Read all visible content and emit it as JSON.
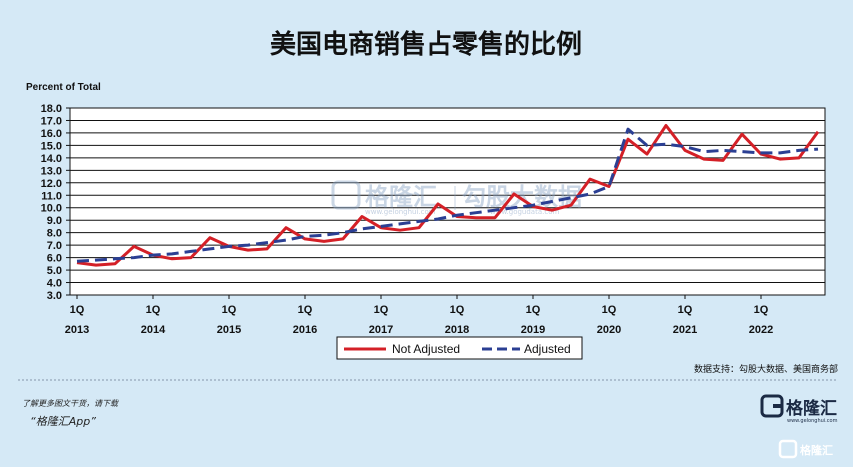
{
  "chart_data": {
    "type": "line",
    "title": "美国电商销售占零售的比例",
    "ylabel": "Percent of Total",
    "xlabel": "",
    "ylim": [
      3.0,
      18.0
    ],
    "yticks": [
      "3.0",
      "4.0",
      "5.0",
      "6.0",
      "7.0",
      "8.0",
      "9.0",
      "10.0",
      "11.0",
      "12.0",
      "13.0",
      "14.0",
      "15.0",
      "16.0",
      "17.0",
      "18.0"
    ],
    "grid": "horizontal",
    "legend_position": "bottom-center",
    "x_ticks": [
      {
        "q": "1Q",
        "year": "2013"
      },
      {
        "q": "1Q",
        "year": "2014"
      },
      {
        "q": "1Q",
        "year": "2015"
      },
      {
        "q": "1Q",
        "year": "2016"
      },
      {
        "q": "1Q",
        "year": "2017"
      },
      {
        "q": "1Q",
        "year": "2018"
      },
      {
        "q": "1Q",
        "year": "2019"
      },
      {
        "q": "1Q",
        "year": "2020"
      },
      {
        "q": "1Q",
        "year": "2021"
      },
      {
        "q": "1Q",
        "year": "2022"
      }
    ],
    "categories": [
      "2013 Q1",
      "2013 Q2",
      "2013 Q3",
      "2013 Q4",
      "2014 Q1",
      "2014 Q2",
      "2014 Q3",
      "2014 Q4",
      "2015 Q1",
      "2015 Q2",
      "2015 Q3",
      "2015 Q4",
      "2016 Q1",
      "2016 Q2",
      "2016 Q3",
      "2016 Q4",
      "2017 Q1",
      "2017 Q2",
      "2017 Q3",
      "2017 Q4",
      "2018 Q1",
      "2018 Q2",
      "2018 Q3",
      "2018 Q4",
      "2019 Q1",
      "2019 Q2",
      "2019 Q3",
      "2019 Q4",
      "2020 Q1",
      "2020 Q2",
      "2020 Q3",
      "2020 Q4",
      "2021 Q1",
      "2021 Q2",
      "2021 Q3",
      "2021 Q4",
      "2022 Q1",
      "2022 Q2",
      "2022 Q3",
      "2022 Q4"
    ],
    "series": [
      {
        "name": "Not Adjusted",
        "color": "#d42027",
        "style": "solid",
        "values": [
          5.6,
          5.4,
          5.5,
          6.9,
          6.2,
          5.9,
          6.0,
          7.6,
          6.9,
          6.6,
          6.7,
          8.4,
          7.5,
          7.3,
          7.5,
          9.3,
          8.4,
          8.2,
          8.4,
          10.3,
          9.3,
          9.2,
          9.2,
          11.1,
          10.1,
          9.8,
          10.2,
          12.3,
          11.7,
          15.5,
          14.3,
          16.6,
          14.6,
          13.9,
          13.8,
          15.9,
          14.3,
          13.9,
          14.0,
          16.1
        ]
      },
      {
        "name": "Adjusted",
        "color": "#2b3f93",
        "style": "dashed",
        "values": [
          5.7,
          5.8,
          5.9,
          6.0,
          6.2,
          6.3,
          6.5,
          6.7,
          6.9,
          7.0,
          7.2,
          7.4,
          7.7,
          7.8,
          8.0,
          8.3,
          8.5,
          8.7,
          8.9,
          9.1,
          9.4,
          9.6,
          9.8,
          10.0,
          10.2,
          10.5,
          10.8,
          11.1,
          11.7,
          16.3,
          15.0,
          15.1,
          14.9,
          14.5,
          14.6,
          14.5,
          14.4,
          14.4,
          14.6,
          14.7
        ]
      }
    ]
  },
  "source": "数据支持：勾股大数据、美国商务部",
  "watermark": {
    "brand": "格隆汇",
    "brand_sub": "www.gelonghui.com",
    "data_brand": "勾股大数据",
    "data_sub": "www.gogudata.com"
  },
  "footer": {
    "note": "了解更多图文干货，请下载",
    "app": "“格隆汇App”",
    "logo_text": "格隆汇",
    "logo_sub": "www.gelonghui.com",
    "corner_text": "格隆汇"
  },
  "colors": {
    "background": "#d5e9f6",
    "plot_background": "#ffffff",
    "not_adjusted": "#d42027",
    "adjusted": "#2b3f93"
  }
}
